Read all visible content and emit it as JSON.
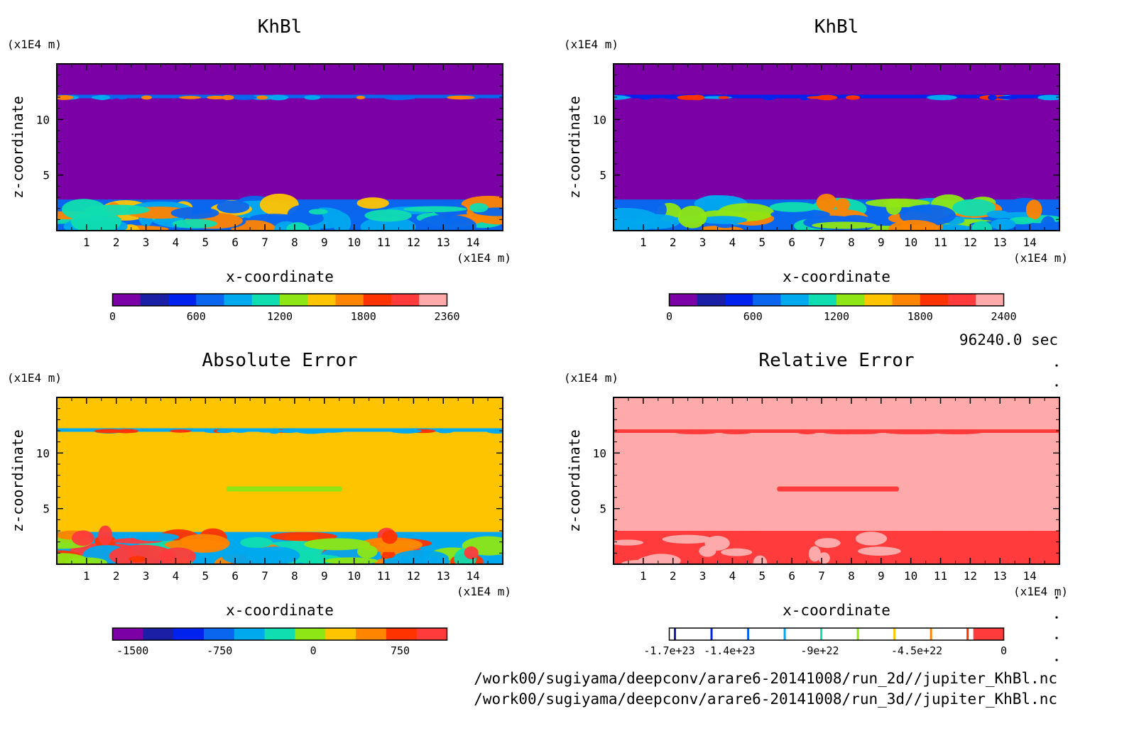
{
  "time_label": "96240.0 sec",
  "file_paths": [
    "/work00/sugiyama/deepconv/arare6-20141008/run_2d//jupiter_KhBl.nc",
    "/work00/sugiyama/deepconv/arare6-20141008/run_3d//jupiter_KhBl.nc"
  ],
  "palette": [
    "#7b00a6",
    "#1a1fa6",
    "#0022ee",
    "#0a66ee",
    "#00a8ee",
    "#10ddb0",
    "#8ee614",
    "#ffc400",
    "#ff8400",
    "#ff3300",
    "#ff3b3b",
    "#ffaaaa"
  ],
  "chart_data": [
    {
      "type": "heatmap",
      "title": "KhBl",
      "xlabel": "x-coordinate",
      "ylabel": "z-coordinate",
      "x_unit": "(x1E4 m)",
      "y_unit": "(x1E4 m)",
      "x_ticks": [
        "1",
        "2",
        "3",
        "4",
        "5",
        "6",
        "7",
        "8",
        "9",
        "10",
        "11",
        "12",
        "13",
        "14"
      ],
      "y_ticks": [
        "5",
        "10"
      ],
      "xlim": [
        0,
        15
      ],
      "ylim": [
        0,
        15
      ],
      "colorbar": {
        "levels": 12,
        "min": 0,
        "max": 2360,
        "tick_labels": [
          "0",
          "600",
          "1200",
          "1800",
          "2360"
        ]
      },
      "background_level": 0,
      "features": [
        {
          "kind": "boundary-layer",
          "z_range": [
            0,
            2.8
          ],
          "dominant_levels": [
            3,
            4,
            5,
            7,
            8
          ]
        },
        {
          "kind": "thin-layer",
          "z": 12.1,
          "dominant_levels": [
            3,
            4,
            8
          ]
        }
      ]
    },
    {
      "type": "heatmap",
      "title": "KhBl",
      "xlabel": "x-coordinate",
      "ylabel": "z-coordinate",
      "x_unit": "(x1E4 m)",
      "y_unit": "(x1E4 m)",
      "x_ticks": [
        "1",
        "2",
        "3",
        "4",
        "5",
        "6",
        "7",
        "8",
        "9",
        "10",
        "11",
        "12",
        "13",
        "14"
      ],
      "y_ticks": [
        "5",
        "10"
      ],
      "xlim": [
        0,
        15
      ],
      "ylim": [
        0,
        15
      ],
      "colorbar": {
        "levels": 12,
        "min": 0,
        "max": 2400,
        "tick_labels": [
          "0",
          "600",
          "1200",
          "1800",
          "2400"
        ]
      },
      "background_level": 0,
      "features": [
        {
          "kind": "boundary-layer",
          "z_range": [
            0,
            2.8
          ],
          "dominant_levels": [
            3,
            4,
            5,
            6,
            8
          ]
        },
        {
          "kind": "thin-layer",
          "z": 12.1,
          "dominant_levels": [
            2,
            4,
            9
          ]
        }
      ]
    },
    {
      "type": "heatmap",
      "title": "Absolute Error",
      "xlabel": "x-coordinate",
      "ylabel": "z-coordinate",
      "x_unit": "(x1E4 m)",
      "y_unit": "(x1E4 m)",
      "x_ticks": [
        "1",
        "2",
        "3",
        "4",
        "5",
        "6",
        "7",
        "8",
        "9",
        "10",
        "11",
        "12",
        "13",
        "14"
      ],
      "y_ticks": [
        "5",
        "10"
      ],
      "xlim": [
        0,
        15
      ],
      "ylim": [
        0,
        15
      ],
      "colorbar": {
        "levels": 11,
        "tick_labels": [
          "-1500",
          "-750",
          "0",
          "750"
        ]
      },
      "background_level": 7,
      "features": [
        {
          "kind": "boundary-layer",
          "z_range": [
            0,
            2.9
          ],
          "dominant_levels": [
            4,
            5,
            6,
            8,
            9,
            10
          ]
        },
        {
          "kind": "thin-layer",
          "z": 12.1,
          "dominant_levels": [
            4,
            9
          ]
        },
        {
          "kind": "band",
          "x_range": [
            5.7,
            9.6
          ],
          "z": 6.8,
          "level": 6
        }
      ]
    },
    {
      "type": "heatmap",
      "title": "Relative Error",
      "xlabel": "x-coordinate",
      "ylabel": "z-coordinate",
      "x_unit": "(x1E4 m)",
      "y_unit": "(x1E4 m)",
      "x_ticks": [
        "1",
        "2",
        "3",
        "4",
        "5",
        "6",
        "7",
        "8",
        "9",
        "10",
        "11",
        "12",
        "13",
        "14"
      ],
      "y_ticks": [
        "5",
        "10"
      ],
      "xlim": [
        0,
        15
      ],
      "ylim": [
        0,
        15
      ],
      "colorbar": {
        "levels": 11,
        "style": "contour-lines",
        "tick_labels": [
          "-1.7e+23",
          "-1.4e+23",
          "-9e+22",
          "-4.5e+22",
          "0"
        ]
      },
      "background_color": "#ffaaaa",
      "features": [
        {
          "kind": "boundary-layer",
          "z_range": [
            0,
            3.0
          ],
          "color": "#ff3b3b"
        },
        {
          "kind": "thin-layer",
          "z": 12.0,
          "color": "#ff3b3b"
        },
        {
          "kind": "band",
          "x_range": [
            5.5,
            9.6
          ],
          "z": 6.8,
          "color": "#ff3b3b"
        }
      ]
    }
  ]
}
